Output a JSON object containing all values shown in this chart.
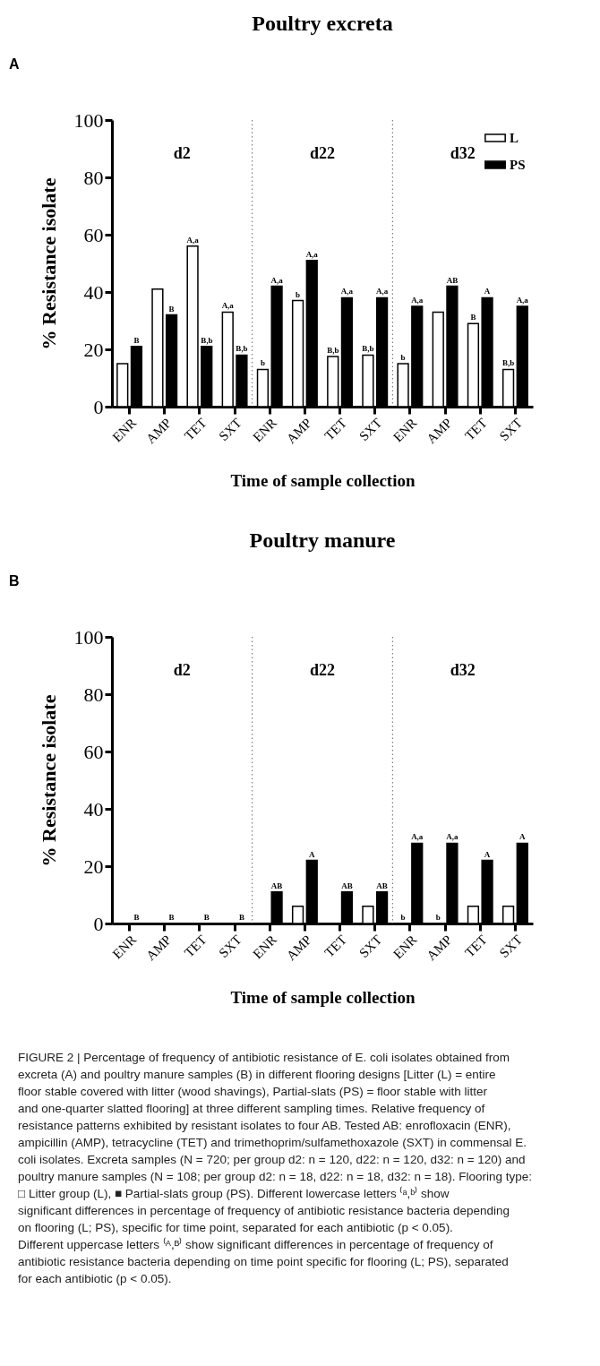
{
  "chart_data": [
    {
      "type": "bar",
      "title": "Poultry excreta",
      "ylabel": "% Resistance isolate",
      "xlabel": "Time of sample collection",
      "categories": [
        "ENR",
        "AMP",
        "TET",
        "SXT",
        "ENR",
        "AMP",
        "TET",
        "SXT",
        "ENR",
        "AMP",
        "TET",
        "SXT"
      ],
      "series": [
        {
          "name": "L",
          "color": "#ffffff",
          "values": [
            15,
            41,
            56,
            33,
            13,
            37,
            17.5,
            18,
            15,
            33,
            29,
            13
          ],
          "value_labels": [
            null,
            null,
            "A,a",
            "A,a",
            "b",
            "b",
            "B,b",
            "B,b",
            "b",
            null,
            "B",
            "B,b"
          ]
        },
        {
          "name": "PS",
          "color": "#000000",
          "values": [
            21,
            32,
            21,
            18,
            42,
            51,
            38,
            38,
            35,
            42,
            38,
            35
          ],
          "value_labels": [
            "B",
            "B",
            "B,b",
            "B,b",
            "A,a",
            "A,a",
            "A,a",
            "A,a",
            "A,a",
            "AB",
            "A",
            "A,a"
          ]
        }
      ],
      "ylim": [
        0,
        100
      ],
      "yticks": [
        0,
        20,
        40,
        60,
        80,
        100
      ],
      "grid": false,
      "legend": "top right",
      "annotations": [
        "A",
        "d2",
        "d22",
        "d32"
      ]
    },
    {
      "type": "bar",
      "title": "Poultry manure",
      "ylabel": "% Resistance isolate",
      "xlabel": "Time of sample collection",
      "categories": [
        "ENR",
        "AMP",
        "TET",
        "SXT",
        "ENR",
        "AMP",
        "TET",
        "SXT",
        "ENR",
        "AMP",
        "TET",
        "SXT"
      ],
      "series": [
        {
          "name": "L",
          "color": "#ffffff",
          "values": [
            0,
            0,
            0,
            0,
            0,
            6,
            0,
            6,
            0,
            0,
            6,
            6
          ],
          "value_labels": [
            null,
            null,
            null,
            null,
            null,
            null,
            null,
            null,
            "b",
            "b",
            null,
            null
          ]
        },
        {
          "name": "PS",
          "color": "#000000",
          "values": [
            0,
            0,
            0,
            0,
            11,
            22,
            11,
            11,
            28,
            28,
            22,
            28
          ],
          "value_labels": [
            "B",
            "B",
            "B",
            "B",
            "AB",
            "A",
            "AB",
            "AB",
            "A,a",
            "A,a",
            "A",
            "A"
          ]
        }
      ],
      "ylim": [
        0,
        100
      ],
      "yticks": [
        0,
        20,
        40,
        60,
        80,
        100
      ],
      "grid": false,
      "legend": "top right",
      "annotations": [
        "B",
        "d2",
        "d22",
        "d32",
        "FIGURE 2 | Percentage of frequency of antibiotic resistance of E. coli isolates obtained from excreta (A) and poultry manure samples (B) in different flooring designs [Litter (L) = entire floor stable covered with litter (wood shavings), Partial-slats (PS) = floor stable with litter and one-quarter slatted flooring] at three different sampling times. Relative frequency of resistance patterns exhibited by resistant isolates to four AB. Tested AB: enrofloxacin (ENR), ampicillin (AMP), tetracycline (TET) and trimethoprim/sulfamethoxazole (SXT) in commensal E. coli isolates. Excreta samples (N = 720; per group d2: n = 120, d22: n = 120, d32: n = 120) and poultry manure samples (N = 108; per group d2: n = 18, d22: n = 18, d32: n = 18). Flooring type: □ Litter group (L), ■ Partial-slats group (PS). Different lowercase letters ⁽ᵃ,ᵇ⁾ show significant differences in percentage of frequency of antibiotic resistance bacteria depending on flooring (L; PS), specific for time point, separated for each antibiotic (p < 0.05). Different uppercase letters ⁽ᴬ,ᴮ⁾ show significant differences in percentage of frequency of antibiotic resistance bacteria depending on time point specific for flooring (L; PS), separated for each antibiotic (p < 0.05)."
      ]
    }
  ]
}
